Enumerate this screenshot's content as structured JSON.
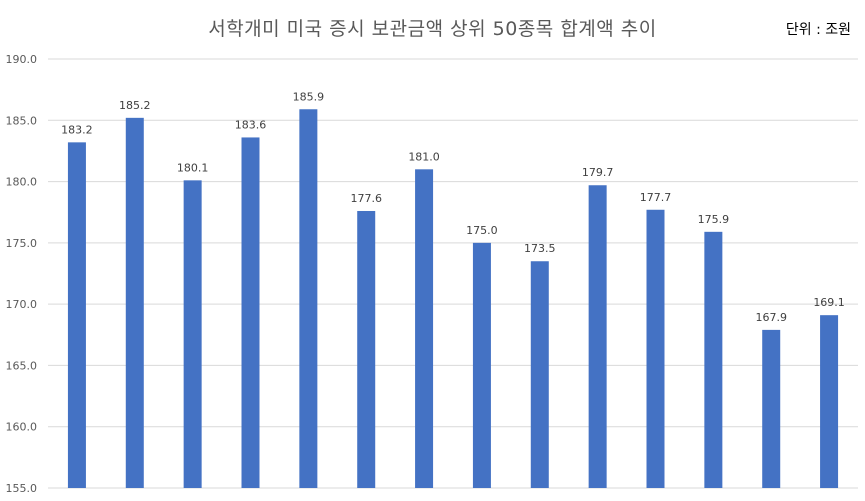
{
  "chart_data": {
    "type": "bar",
    "title": "서학개미 미국 증시 보관금액 상위 50종목 합계액 추이",
    "unit_label": "단위 : 조원",
    "xlabel": "",
    "ylabel": "",
    "categories": [
      "",
      "",
      "",
      "",
      "",
      "",
      "",
      "",
      "",
      "",
      "",
      "",
      "",
      ""
    ],
    "values": [
      183.2,
      185.2,
      180.1,
      183.6,
      185.9,
      177.6,
      181.0,
      175.0,
      173.5,
      179.7,
      177.7,
      175.9,
      167.9,
      169.1
    ],
    "data_labels": [
      "183.2",
      "185.2",
      "180.1",
      "183.6",
      "185.9",
      "177.6",
      "181.0",
      "175.0",
      "173.5",
      "179.7",
      "177.7",
      "175.9",
      "167.9",
      "169.1"
    ],
    "ylim": [
      155,
      190
    ],
    "yticks": [
      155,
      160,
      165,
      170,
      175,
      180,
      185,
      190
    ],
    "ytick_labels": [
      "155.0",
      "160.0",
      "165.0",
      "170.0",
      "175.0",
      "180.0",
      "185.0",
      "190.0"
    ],
    "grid": true,
    "legend": "none",
    "colors": {
      "bar": "#4472C4",
      "grid": "#D9D9D9",
      "axis_text": "#595959",
      "title_text": "#595959"
    }
  }
}
